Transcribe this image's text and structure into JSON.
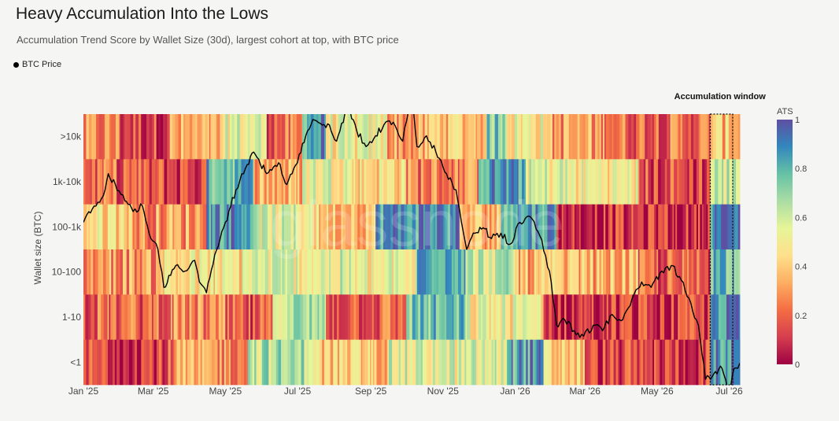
{
  "header": {
    "title": "Heavy Accumulation Into the Lows",
    "subtitle": "Accumulation Trend Score by Wallet Size (30d), largest cohort at top, with BTC price"
  },
  "legend": {
    "label": "BTC Price",
    "color": "#000000"
  },
  "annotation": {
    "label": "Accumulation window"
  },
  "watermark": "glassnode",
  "chart_data": {
    "type": "heatmap",
    "title": "Heavy Accumulation Into the Lows",
    "subtitle": "Accumulation Trend Score by Wallet Size (30d), largest cohort at top, with BTC price",
    "ylabel": "Wallet size (BTC)",
    "cohorts": [
      ">10k",
      "1k-10k",
      "100-1k",
      "10-100",
      "1-10",
      "<1"
    ],
    "x_ticks": [
      "Jan '25",
      "Mar '25",
      "May '25",
      "Jul '25",
      "Sep '25",
      "Nov '25",
      "Jan '26",
      "Mar '26",
      "May '26",
      "Jul '26"
    ],
    "x_range": [
      "2025-01-01",
      "2026-07-10"
    ],
    "colorbar": {
      "title": "ATS",
      "ticks": [
        "0",
        "0.2",
        "0.4",
        "0.6",
        "0.8",
        "1"
      ],
      "range": [
        0,
        1
      ]
    },
    "colormap": [
      "#9e0142",
      "#d53e4f",
      "#f46d43",
      "#fdae61",
      "#fee08b",
      "#e6f598",
      "#abdda4",
      "#66c2a5",
      "#3288bd",
      "#5e4fa2"
    ],
    "ats_segments": [
      [
        {
          "start": "2025-01-01",
          "end": "2025-02-01",
          "v": 0.25
        },
        {
          "start": "2025-02-01",
          "end": "2025-03-15",
          "v": 0.15
        },
        {
          "start": "2025-03-15",
          "end": "2025-05-01",
          "v": 0.3
        },
        {
          "start": "2025-05-01",
          "end": "2025-06-05",
          "v": 0.55
        },
        {
          "start": "2025-06-05",
          "end": "2025-07-05",
          "v": 0.2
        },
        {
          "start": "2025-07-05",
          "end": "2025-07-25",
          "v": 0.85
        },
        {
          "start": "2025-07-25",
          "end": "2025-09-15",
          "v": 0.5
        },
        {
          "start": "2025-09-15",
          "end": "2025-10-20",
          "v": 0.3
        },
        {
          "start": "2025-10-20",
          "end": "2025-12-08",
          "v": 0.4
        },
        {
          "start": "2025-12-08",
          "end": "2025-12-25",
          "v": 0.75
        },
        {
          "start": "2025-12-25",
          "end": "2026-01-28",
          "v": 0.5
        },
        {
          "start": "2026-01-28",
          "end": "2026-03-25",
          "v": 0.3
        },
        {
          "start": "2026-03-25",
          "end": "2026-06-15",
          "v": 0.22
        },
        {
          "start": "2026-06-15",
          "end": "2026-07-10",
          "v": 0.38
        }
      ],
      [
        {
          "start": "2025-01-01",
          "end": "2025-02-15",
          "v": 0.2
        },
        {
          "start": "2025-02-15",
          "end": "2025-04-15",
          "v": 0.15
        },
        {
          "start": "2025-04-15",
          "end": "2025-05-25",
          "v": 0.8
        },
        {
          "start": "2025-05-25",
          "end": "2025-07-05",
          "v": 0.35
        },
        {
          "start": "2025-07-05",
          "end": "2025-08-15",
          "v": 0.55
        },
        {
          "start": "2025-08-15",
          "end": "2025-10-01",
          "v": 0.45
        },
        {
          "start": "2025-10-01",
          "end": "2025-12-01",
          "v": 0.25
        },
        {
          "start": "2025-12-01",
          "end": "2026-01-10",
          "v": 0.85
        },
        {
          "start": "2026-01-10",
          "end": "2026-02-15",
          "v": 0.55
        },
        {
          "start": "2026-02-15",
          "end": "2026-04-15",
          "v": 0.5
        },
        {
          "start": "2026-04-15",
          "end": "2026-06-15",
          "v": 0.15
        },
        {
          "start": "2026-06-15",
          "end": "2026-07-10",
          "v": 0.6
        }
      ],
      [
        {
          "start": "2025-01-01",
          "end": "2025-02-10",
          "v": 0.45
        },
        {
          "start": "2025-02-10",
          "end": "2025-04-15",
          "v": 0.3
        },
        {
          "start": "2025-04-15",
          "end": "2025-05-25",
          "v": 0.88
        },
        {
          "start": "2025-05-25",
          "end": "2025-07-15",
          "v": 0.55
        },
        {
          "start": "2025-07-15",
          "end": "2025-09-05",
          "v": 0.4
        },
        {
          "start": "2025-09-05",
          "end": "2025-11-15",
          "v": 0.88
        },
        {
          "start": "2025-11-15",
          "end": "2025-12-20",
          "v": 0.35
        },
        {
          "start": "2025-12-20",
          "end": "2026-02-05",
          "v": 0.85
        },
        {
          "start": "2026-02-05",
          "end": "2026-06-15",
          "v": 0.1
        },
        {
          "start": "2026-06-15",
          "end": "2026-07-10",
          "v": 0.92
        }
      ],
      [
        {
          "start": "2025-01-01",
          "end": "2025-03-05",
          "v": 0.3
        },
        {
          "start": "2025-03-05",
          "end": "2025-05-15",
          "v": 0.45
        },
        {
          "start": "2025-05-15",
          "end": "2025-08-15",
          "v": 0.55
        },
        {
          "start": "2025-08-15",
          "end": "2025-10-10",
          "v": 0.5
        },
        {
          "start": "2025-10-10",
          "end": "2025-11-20",
          "v": 0.88
        },
        {
          "start": "2025-11-20",
          "end": "2026-01-01",
          "v": 0.6
        },
        {
          "start": "2026-01-01",
          "end": "2026-03-15",
          "v": 0.35
        },
        {
          "start": "2026-03-15",
          "end": "2026-04-15",
          "v": 0.35
        },
        {
          "start": "2026-04-15",
          "end": "2026-06-15",
          "v": 0.18
        },
        {
          "start": "2026-06-15",
          "end": "2026-07-10",
          "v": 0.8
        }
      ],
      [
        {
          "start": "2025-01-01",
          "end": "2025-03-01",
          "v": 0.2
        },
        {
          "start": "2025-03-01",
          "end": "2025-05-01",
          "v": 0.25
        },
        {
          "start": "2025-05-01",
          "end": "2025-06-10",
          "v": 0.15
        },
        {
          "start": "2025-06-10",
          "end": "2025-07-25",
          "v": 0.65
        },
        {
          "start": "2025-07-25",
          "end": "2025-10-01",
          "v": 0.2
        },
        {
          "start": "2025-10-01",
          "end": "2025-11-20",
          "v": 0.75
        },
        {
          "start": "2025-11-20",
          "end": "2026-01-25",
          "v": 0.5
        },
        {
          "start": "2026-01-25",
          "end": "2026-06-15",
          "v": 0.12
        },
        {
          "start": "2026-06-15",
          "end": "2026-07-10",
          "v": 0.9
        }
      ],
      [
        {
          "start": "2025-01-01",
          "end": "2025-03-20",
          "v": 0.15
        },
        {
          "start": "2025-03-20",
          "end": "2025-05-20",
          "v": 0.3
        },
        {
          "start": "2025-05-20",
          "end": "2025-07-15",
          "v": 0.65
        },
        {
          "start": "2025-07-15",
          "end": "2025-09-15",
          "v": 0.4
        },
        {
          "start": "2025-09-15",
          "end": "2025-12-25",
          "v": 0.55
        },
        {
          "start": "2025-12-25",
          "end": "2026-01-25",
          "v": 0.85
        },
        {
          "start": "2026-01-25",
          "end": "2026-03-01",
          "v": 0.4
        },
        {
          "start": "2026-03-01",
          "end": "2026-06-15",
          "v": 0.12
        },
        {
          "start": "2026-06-15",
          "end": "2026-07-10",
          "v": 0.85
        }
      ]
    ],
    "accumulation_window": {
      "start": "2026-06-15",
      "end": "2026-07-04"
    },
    "price_series": {
      "name": "BTC Price",
      "points": [
        {
          "date": "2025-01-01",
          "v": 0.6
        },
        {
          "date": "2025-01-10",
          "v": 0.66
        },
        {
          "date": "2025-01-18",
          "v": 0.7
        },
        {
          "date": "2025-01-22",
          "v": 0.78
        },
        {
          "date": "2025-01-28",
          "v": 0.74
        },
        {
          "date": "2025-02-05",
          "v": 0.68
        },
        {
          "date": "2025-02-12",
          "v": 0.64
        },
        {
          "date": "2025-02-20",
          "v": 0.66
        },
        {
          "date": "2025-02-27",
          "v": 0.54
        },
        {
          "date": "2025-03-05",
          "v": 0.5
        },
        {
          "date": "2025-03-10",
          "v": 0.36
        },
        {
          "date": "2025-03-20",
          "v": 0.44
        },
        {
          "date": "2025-03-28",
          "v": 0.42
        },
        {
          "date": "2025-04-05",
          "v": 0.46
        },
        {
          "date": "2025-04-09",
          "v": 0.38
        },
        {
          "date": "2025-04-15",
          "v": 0.34
        },
        {
          "date": "2025-04-22",
          "v": 0.48
        },
        {
          "date": "2025-05-01",
          "v": 0.6
        },
        {
          "date": "2025-05-10",
          "v": 0.72
        },
        {
          "date": "2025-05-18",
          "v": 0.8
        },
        {
          "date": "2025-05-25",
          "v": 0.86
        },
        {
          "date": "2025-06-05",
          "v": 0.78
        },
        {
          "date": "2025-06-15",
          "v": 0.82
        },
        {
          "date": "2025-06-22",
          "v": 0.74
        },
        {
          "date": "2025-07-01",
          "v": 0.82
        },
        {
          "date": "2025-07-08",
          "v": 0.92
        },
        {
          "date": "2025-07-14",
          "v": 0.98
        },
        {
          "date": "2025-07-22",
          "v": 0.96
        },
        {
          "date": "2025-07-28",
          "v": 0.96
        },
        {
          "date": "2025-08-03",
          "v": 0.9
        },
        {
          "date": "2025-08-13",
          "v": 1.03
        },
        {
          "date": "2025-08-20",
          "v": 0.94
        },
        {
          "date": "2025-08-28",
          "v": 0.88
        },
        {
          "date": "2025-09-05",
          "v": 0.92
        },
        {
          "date": "2025-09-12",
          "v": 0.96
        },
        {
          "date": "2025-09-20",
          "v": 0.97
        },
        {
          "date": "2025-09-28",
          "v": 0.9
        },
        {
          "date": "2025-10-06",
          "v": 1.08
        },
        {
          "date": "2025-10-10",
          "v": 0.88
        },
        {
          "date": "2025-10-18",
          "v": 0.92
        },
        {
          "date": "2025-10-26",
          "v": 0.86
        },
        {
          "date": "2025-11-04",
          "v": 0.78
        },
        {
          "date": "2025-11-12",
          "v": 0.72
        },
        {
          "date": "2025-11-21",
          "v": 0.5
        },
        {
          "date": "2025-11-28",
          "v": 0.56
        },
        {
          "date": "2025-12-05",
          "v": 0.58
        },
        {
          "date": "2025-12-12",
          "v": 0.54
        },
        {
          "date": "2025-12-20",
          "v": 0.56
        },
        {
          "date": "2025-12-28",
          "v": 0.52
        },
        {
          "date": "2026-01-05",
          "v": 0.6
        },
        {
          "date": "2026-01-14",
          "v": 0.62
        },
        {
          "date": "2026-01-22",
          "v": 0.55
        },
        {
          "date": "2026-01-30",
          "v": 0.42
        },
        {
          "date": "2026-02-05",
          "v": 0.22
        },
        {
          "date": "2026-02-12",
          "v": 0.24
        },
        {
          "date": "2026-02-20",
          "v": 0.2
        },
        {
          "date": "2026-02-28",
          "v": 0.18
        },
        {
          "date": "2026-03-08",
          "v": 0.22
        },
        {
          "date": "2026-03-16",
          "v": 0.2
        },
        {
          "date": "2026-03-24",
          "v": 0.26
        },
        {
          "date": "2026-04-02",
          "v": 0.24
        },
        {
          "date": "2026-04-10",
          "v": 0.32
        },
        {
          "date": "2026-04-18",
          "v": 0.38
        },
        {
          "date": "2026-04-26",
          "v": 0.36
        },
        {
          "date": "2026-05-05",
          "v": 0.42
        },
        {
          "date": "2026-05-13",
          "v": 0.44
        },
        {
          "date": "2026-05-20",
          "v": 0.4
        },
        {
          "date": "2026-05-28",
          "v": 0.32
        },
        {
          "date": "2026-06-05",
          "v": 0.22
        },
        {
          "date": "2026-06-11",
          "v": 0.02
        },
        {
          "date": "2026-06-18",
          "v": 0.04
        },
        {
          "date": "2026-06-25",
          "v": 0.06
        },
        {
          "date": "2026-07-01",
          "v": -0.04
        },
        {
          "date": "2026-07-05",
          "v": 0.06
        },
        {
          "date": "2026-07-10",
          "v": 0.08
        }
      ]
    }
  }
}
